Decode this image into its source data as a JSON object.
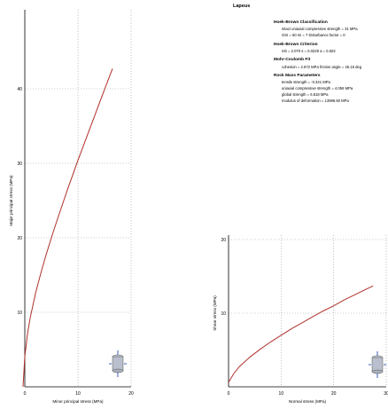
{
  "results": {
    "title": "Lapeus",
    "sections": [
      {
        "heading": "Hoek-Brown Classification",
        "lines": [
          "intact uniaxial compressive strength = 31 MPa",
          "GSI = 60   mi = 7   Disturbance factor = 0"
        ]
      },
      {
        "heading": "Hoek-Brown Criterion",
        "lines": [
          "mb = 2.070   s = 0.0229   a = 0.502"
        ]
      },
      {
        "heading": "Mohr-Coulomb Fit",
        "lines": [
          "cohesion = 2.672 MPa   friction angle = 26.18 deg"
        ]
      },
      {
        "heading": "Rock Mass Parameters",
        "lines": [
          "tensile strength = -0.341 MPa",
          "uniaxial compressive strength = 4.056 MPa",
          "global strength = 6.818 MPa",
          "modulus of deformation = 13996.50 MPa"
        ]
      }
    ]
  },
  "chart_data": [
    {
      "type": "line",
      "title": "",
      "xlabel": "Minor principal stress (MPa)",
      "ylabel": "Major principal stress (MPa)",
      "xlim": [
        0,
        20
      ],
      "ylim": [
        0,
        50
      ],
      "xticks": [
        "0",
        "10",
        "20"
      ],
      "yticks": [
        "10",
        "20",
        "30",
        "40"
      ],
      "grid": true,
      "color": "#b0302a",
      "series": [
        {
          "x": [
            -0.34,
            0,
            0.5,
            1,
            2,
            3,
            4,
            5,
            6,
            7,
            8,
            9,
            10,
            11,
            12,
            13,
            14,
            15,
            16.5
          ],
          "y": [
            0,
            4.06,
            7.1,
            9.2,
            12.5,
            15.2,
            17.7,
            20.0,
            22.2,
            24.3,
            26.4,
            28.4,
            30.4,
            32.3,
            34.2,
            36.1,
            38.0,
            39.9,
            42.7
          ]
        }
      ]
    },
    {
      "type": "line",
      "title": "",
      "xlabel": "Normal stress (MPa)",
      "ylabel": "Shear stress (MPa)",
      "xlim": [
        0,
        30
      ],
      "ylim": [
        0,
        20
      ],
      "xticks": [
        "0",
        "10",
        "20",
        "30"
      ],
      "yticks": [
        "10",
        "20"
      ],
      "grid": true,
      "color": "#b0302a",
      "series": [
        {
          "x": [
            0,
            1,
            2,
            4,
            6,
            8,
            10,
            12,
            14,
            16,
            18,
            20,
            22,
            24,
            26,
            27.5
          ],
          "y": [
            0.6,
            1.8,
            2.7,
            4.0,
            5.1,
            6.1,
            7.0,
            7.9,
            8.7,
            9.5,
            10.3,
            11.0,
            11.8,
            12.5,
            13.2,
            13.7
          ]
        }
      ]
    }
  ]
}
